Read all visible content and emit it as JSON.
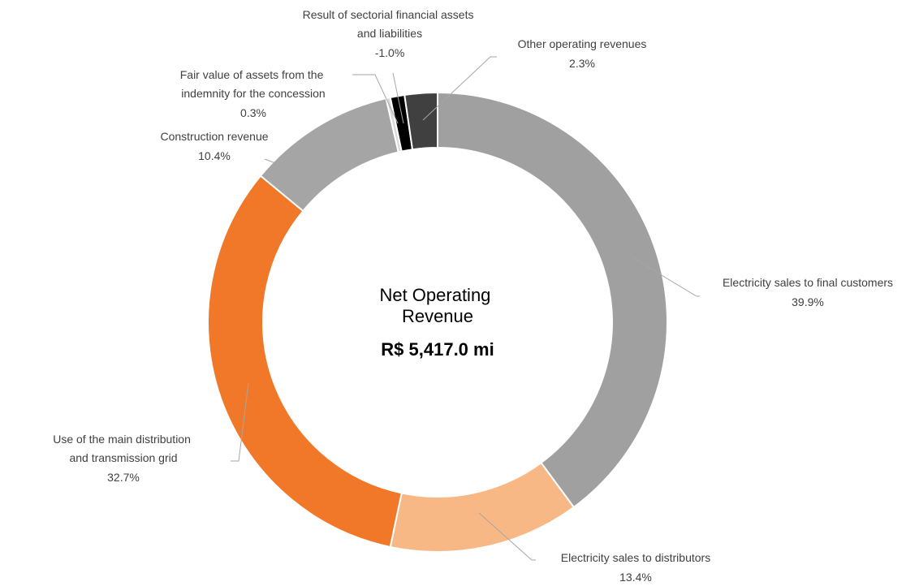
{
  "chart_data": {
    "type": "donut",
    "center_title": "Net Operating Revenue",
    "center_value": "R$ 5,417.0 mi",
    "categories": [
      "Electricity sales to final customers",
      "Electricity sales to distributors",
      "Use of the main distribution and transmission grid",
      "Construction revenue",
      "Fair value of assets from the indemnity for the concession",
      "Result of sectorial financial assets and liabilities",
      "Other operating revenues"
    ],
    "values": [
      39.9,
      13.4,
      32.7,
      10.4,
      0.3,
      -1.0,
      2.3
    ],
    "value_labels": [
      "39.9%",
      "13.4%",
      "32.7%",
      "10.4%",
      "0.3%",
      "-1.0%",
      "2.3%"
    ],
    "colors": [
      "#a0a0a0",
      "#f8b886",
      "#f07828",
      "#a5a5a5",
      "#d9d9d9",
      "#000000",
      "#404040"
    ]
  }
}
